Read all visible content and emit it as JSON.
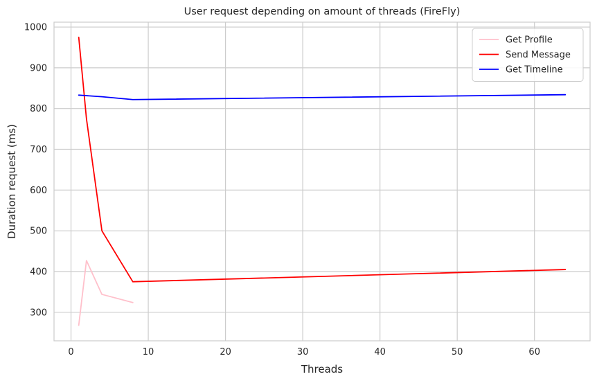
{
  "chart_data": {
    "type": "line",
    "title": "User request depending on amount of threads (FireFly)",
    "xlabel": "Threads",
    "ylabel": "Duration request (ms)",
    "xlim": [
      -2.2,
      67.2
    ],
    "ylim": [
      230,
      1012
    ],
    "xticks": [
      0,
      10,
      20,
      30,
      40,
      50,
      60
    ],
    "yticks": [
      300,
      400,
      500,
      600,
      700,
      800,
      900,
      1000
    ],
    "grid": true,
    "legend_position": "top-right",
    "series": [
      {
        "name": "Get Profile",
        "color": "#ffc0cb",
        "x": [
          1,
          2,
          4,
          8
        ],
        "y": [
          268,
          427,
          344,
          324
        ]
      },
      {
        "name": "Send Message",
        "color": "#ff0000",
        "x": [
          1,
          2,
          4,
          8,
          64
        ],
        "y": [
          975,
          775,
          500,
          375,
          405
        ]
      },
      {
        "name": "Get Timeline",
        "color": "#0000ff",
        "x": [
          1,
          4,
          8,
          64
        ],
        "y": [
          833,
          829,
          822,
          834
        ]
      }
    ]
  }
}
